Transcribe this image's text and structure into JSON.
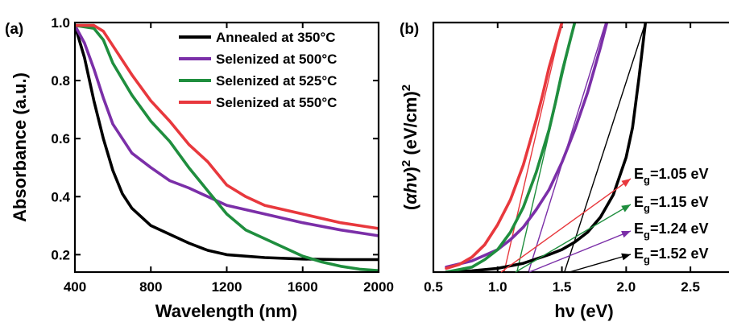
{
  "figure": {
    "width": 905,
    "height": 405
  },
  "chart_data": [
    {
      "panel": "(a)",
      "type": "line",
      "xlabel": "Wavelength (nm)",
      "ylabel": "Absorbance (a.u.)",
      "xlim": [
        400,
        2000
      ],
      "ylim": [
        0.14,
        1.0
      ],
      "xticks": [
        400,
        800,
        1200,
        1600,
        2000
      ],
      "yticks": [
        0.2,
        0.4,
        0.6,
        0.8,
        1.0
      ],
      "ytick_labels": [
        "0.2",
        "0.4",
        "0.6",
        "0.8",
        "1.0"
      ],
      "legend_position": "top-right",
      "series": [
        {
          "name": "Annealed at 350°C",
          "color": "#000000",
          "x": [
            400,
            450,
            500,
            550,
            600,
            650,
            700,
            800,
            900,
            1000,
            1100,
            1200,
            1400,
            1600,
            1800,
            2000
          ],
          "y": [
            0.99,
            0.88,
            0.73,
            0.6,
            0.49,
            0.41,
            0.36,
            0.3,
            0.27,
            0.24,
            0.215,
            0.2,
            0.19,
            0.185,
            0.183,
            0.183
          ]
        },
        {
          "name": "Selenized at 500°C",
          "color": "#7b2fa8",
          "x": [
            400,
            450,
            500,
            550,
            600,
            700,
            800,
            900,
            1000,
            1100,
            1200,
            1400,
            1600,
            1800,
            2000
          ],
          "y": [
            0.99,
            0.93,
            0.84,
            0.74,
            0.65,
            0.55,
            0.5,
            0.455,
            0.43,
            0.4,
            0.37,
            0.34,
            0.31,
            0.285,
            0.265
          ]
        },
        {
          "name": "Selenized at 525°C",
          "color": "#1f8e3e",
          "x": [
            400,
            500,
            550,
            600,
            700,
            800,
            900,
            1000,
            1100,
            1200,
            1300,
            1400,
            1500,
            1600,
            1700,
            1800,
            1900,
            2000
          ],
          "y": [
            0.99,
            0.98,
            0.94,
            0.86,
            0.75,
            0.66,
            0.59,
            0.5,
            0.42,
            0.34,
            0.285,
            0.255,
            0.225,
            0.195,
            0.175,
            0.16,
            0.15,
            0.145
          ]
        },
        {
          "name": "Selenized at 550°C",
          "color": "#e8383d",
          "x": [
            400,
            500,
            550,
            600,
            700,
            800,
            900,
            1000,
            1100,
            1200,
            1300,
            1400,
            1600,
            1800,
            2000
          ],
          "y": [
            0.99,
            0.99,
            0.97,
            0.92,
            0.82,
            0.73,
            0.66,
            0.58,
            0.52,
            0.44,
            0.4,
            0.37,
            0.34,
            0.31,
            0.29
          ]
        }
      ]
    },
    {
      "panel": "(b)",
      "type": "line",
      "xlabel": "hν (eV)",
      "ylabel": "(αhν)² (eV/cm)²",
      "ylabel_parts": [
        "(",
        "αhν",
        ")",
        "2",
        " (eV/cm)",
        "2"
      ],
      "xlim": [
        0.5,
        2.8
      ],
      "ylim": [
        0,
        1
      ],
      "xticks": [
        0.5,
        1.0,
        1.5,
        2.0,
        2.5
      ],
      "xtick_labels": [
        "0.5",
        "1.0",
        "1.5",
        "2.0",
        "2.5"
      ],
      "yticks_shown": false,
      "series": [
        {
          "color": "#000000",
          "x": [
            0.6,
            0.8,
            1.0,
            1.2,
            1.4,
            1.5,
            1.6,
            1.7,
            1.8,
            1.9,
            2.0,
            2.05,
            2.1,
            2.15
          ],
          "y": [
            0.0,
            0.005,
            0.015,
            0.035,
            0.07,
            0.09,
            0.12,
            0.16,
            0.22,
            0.31,
            0.46,
            0.58,
            0.78,
            1.0
          ]
        },
        {
          "color": "#7b2fa8",
          "x": [
            0.6,
            0.8,
            1.0,
            1.1,
            1.2,
            1.3,
            1.4,
            1.5,
            1.6,
            1.7,
            1.75,
            1.8,
            1.85
          ],
          "y": [
            0.02,
            0.045,
            0.09,
            0.13,
            0.18,
            0.25,
            0.33,
            0.44,
            0.57,
            0.72,
            0.81,
            0.9,
            1.0
          ]
        },
        {
          "color": "#1f8e3e",
          "x": [
            0.6,
            0.8,
            0.9,
            1.0,
            1.1,
            1.2,
            1.3,
            1.4,
            1.45,
            1.5,
            1.55,
            1.6
          ],
          "y": [
            0.0,
            0.02,
            0.05,
            0.09,
            0.16,
            0.26,
            0.4,
            0.57,
            0.68,
            0.8,
            0.9,
            1.0
          ]
        },
        {
          "color": "#e8383d",
          "x": [
            0.6,
            0.7,
            0.8,
            0.9,
            1.0,
            1.1,
            1.2,
            1.3,
            1.35,
            1.4,
            1.45,
            1.5
          ],
          "y": [
            0.015,
            0.03,
            0.06,
            0.11,
            0.19,
            0.29,
            0.43,
            0.61,
            0.71,
            0.82,
            0.91,
            1.0
          ]
        }
      ],
      "tangent_lines": [
        {
          "color": "#e8383d",
          "x0": 1.05,
          "x1": 1.5
        },
        {
          "color": "#1f8e3e",
          "x0": 1.15,
          "x1": 1.6
        },
        {
          "color": "#7b2fa8",
          "x0": 1.24,
          "x1": 1.84
        },
        {
          "color": "#000000",
          "x0": 1.52,
          "x1": 2.15
        }
      ],
      "annotations": [
        {
          "label": "E",
          "sub": "g",
          "value": "=1.05 eV",
          "color": "#e8383d"
        },
        {
          "label": "E",
          "sub": "g",
          "value": "=1.15 eV",
          "color": "#1f8e3e"
        },
        {
          "label": "E",
          "sub": "g",
          "value": "=1.24 eV",
          "color": "#7b2fa8"
        },
        {
          "label": "E",
          "sub": "g",
          "value": "=1.52 eV",
          "color": "#000000"
        }
      ]
    }
  ]
}
